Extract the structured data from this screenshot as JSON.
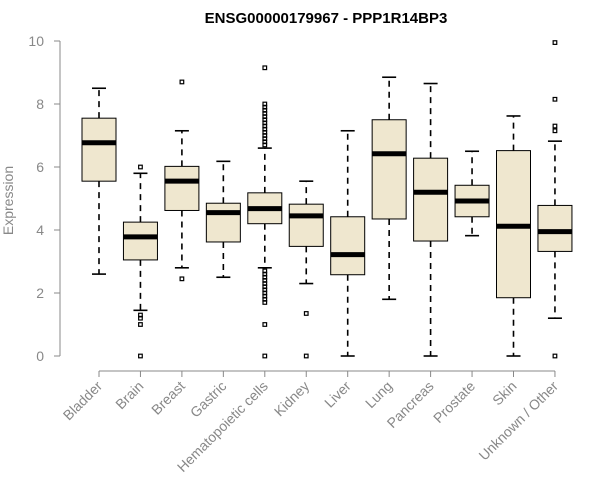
{
  "chart_data": {
    "type": "boxplot",
    "title": "ENSG00000179967 - PPP1R14BP3",
    "xlabel": "",
    "ylabel": "Expression",
    "ylim": [
      0,
      10
    ],
    "yticks": [
      0,
      2,
      4,
      6,
      8,
      10
    ],
    "categories": [
      "Bladder",
      "Brain",
      "Breast",
      "Gastric",
      "Hematopoietic cells",
      "Kidney",
      "Liver",
      "Lung",
      "Pancreas",
      "Prostate",
      "Skin",
      "Unknown / Other"
    ],
    "boxes": [
      {
        "category": "Bladder",
        "whisker_low": 2.6,
        "q1": 5.55,
        "median": 6.77,
        "q3": 7.55,
        "whisker_high": 8.5,
        "outliers": []
      },
      {
        "category": "Brain",
        "whisker_low": 1.45,
        "q1": 3.05,
        "median": 3.78,
        "q3": 4.25,
        "whisker_high": 5.8,
        "outliers": [
          6.0,
          1.3,
          1.2,
          1.0,
          0.0
        ]
      },
      {
        "category": "Breast",
        "whisker_low": 2.8,
        "q1": 4.62,
        "median": 5.55,
        "q3": 6.02,
        "whisker_high": 7.15,
        "outliers": [
          8.7,
          2.45
        ]
      },
      {
        "category": "Gastric",
        "whisker_low": 2.5,
        "q1": 3.62,
        "median": 4.55,
        "q3": 4.85,
        "whisker_high": 6.18,
        "outliers": []
      },
      {
        "category": "Hematopoietic cells",
        "whisker_low": 2.8,
        "q1": 4.2,
        "median": 4.68,
        "q3": 5.18,
        "whisker_high": 6.6,
        "outliers": [
          9.15,
          8.0,
          7.9,
          7.8,
          7.7,
          7.6,
          7.5,
          7.4,
          7.3,
          7.2,
          7.1,
          7.0,
          6.9,
          6.8,
          6.7,
          2.7,
          2.6,
          2.5,
          2.4,
          2.3,
          2.2,
          2.1,
          2.0,
          1.9,
          1.8,
          1.7,
          1.0,
          0.0
        ]
      },
      {
        "category": "Kidney",
        "whisker_low": 2.3,
        "q1": 3.48,
        "median": 4.45,
        "q3": 4.82,
        "whisker_high": 5.55,
        "outliers": [
          1.35,
          0.0
        ]
      },
      {
        "category": "Liver",
        "whisker_low": 0.0,
        "q1": 2.58,
        "median": 3.22,
        "q3": 4.42,
        "whisker_high": 7.15,
        "outliers": []
      },
      {
        "category": "Lung",
        "whisker_low": 1.8,
        "q1": 4.35,
        "median": 6.42,
        "q3": 7.5,
        "whisker_high": 8.85,
        "outliers": []
      },
      {
        "category": "Pancreas",
        "whisker_low": 0.0,
        "q1": 3.65,
        "median": 5.2,
        "q3": 6.28,
        "whisker_high": 8.65,
        "outliers": []
      },
      {
        "category": "Prostate",
        "whisker_low": 3.82,
        "q1": 4.42,
        "median": 4.92,
        "q3": 5.42,
        "whisker_high": 6.5,
        "outliers": []
      },
      {
        "category": "Skin",
        "whisker_low": 0.0,
        "q1": 1.85,
        "median": 4.12,
        "q3": 6.52,
        "whisker_high": 7.62,
        "outliers": []
      },
      {
        "category": "Unknown / Other",
        "whisker_low": 1.2,
        "q1": 3.32,
        "median": 3.95,
        "q3": 4.78,
        "whisker_high": 6.82,
        "outliers": [
          9.95,
          8.15,
          7.3,
          7.15,
          0.0
        ]
      }
    ]
  }
}
